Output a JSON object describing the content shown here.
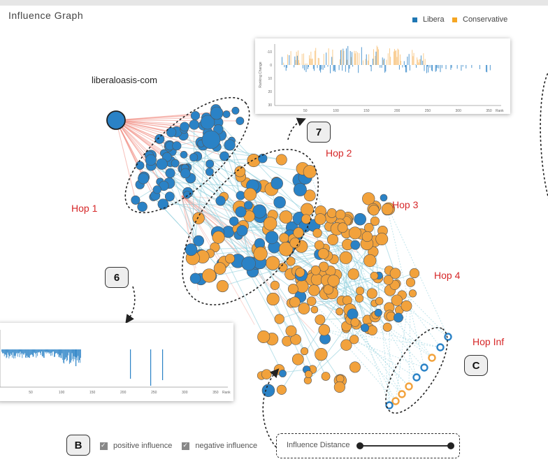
{
  "title": "Influence Graph",
  "legend": [
    {
      "label": "Libera",
      "color": "#1f77b4"
    },
    {
      "label": "Conservative",
      "color": "#f5a623"
    }
  ],
  "source_node": "liberaloasis-com",
  "hops": [
    "Hop 1",
    "Hop 2",
    "Hop 3",
    "Hop 4",
    "Hop Inf"
  ],
  "callouts": {
    "six": "6",
    "seven": "7",
    "b": "B",
    "c": "C"
  },
  "controls": {
    "positive": "positive influence",
    "negative": "negative influence",
    "distance": "Influence Distance"
  },
  "top_chart": {
    "ylabel": "Ranking Change",
    "xlabel": "Rank",
    "yticks": [
      "-10",
      "0",
      "10",
      "20",
      "30"
    ],
    "xticks": [
      "50",
      "100",
      "150",
      "200",
      "250",
      "300",
      "350"
    ]
  },
  "bottom_chart": {
    "xlabel": "Rank",
    "xticks": [
      "50",
      "100",
      "150",
      "200",
      "250",
      "300",
      "350"
    ]
  },
  "colors": {
    "liberal": "#2a82c6",
    "conservative": "#f2a23c",
    "pos_edge": "#8fcfdc",
    "neg_edge": "#f08b80",
    "hop_label": "#d62728"
  }
}
